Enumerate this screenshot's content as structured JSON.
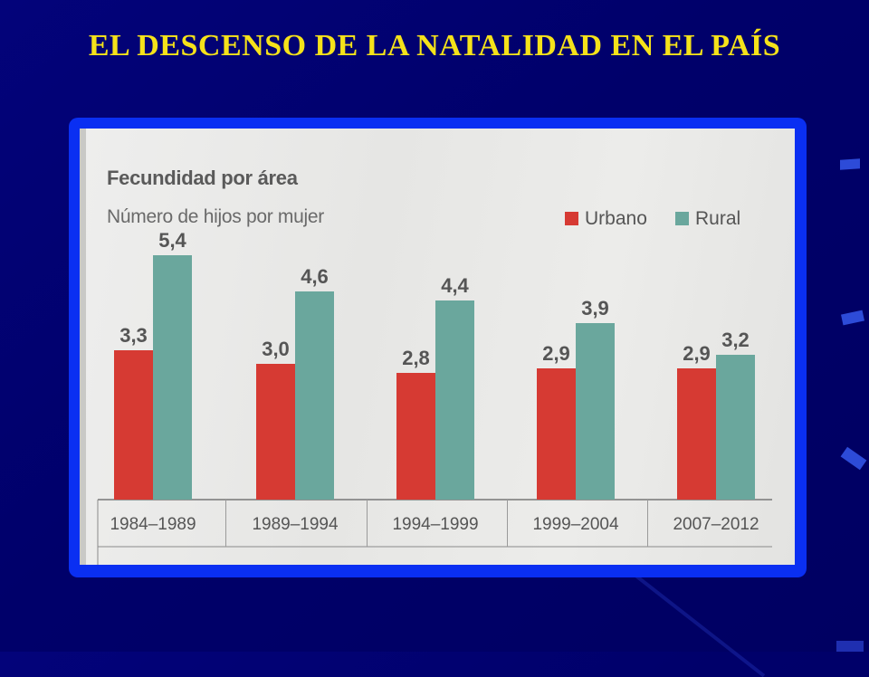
{
  "slide": {
    "title": "EL DESCENSO DE LA NATALIDAD EN EL PAÍS"
  },
  "colors": {
    "background": "#01016e",
    "title": "#f5e21a",
    "frame": "#0a2ff2",
    "urbano": "#d63a33",
    "rural": "#6aa79d"
  },
  "chart_data": {
    "type": "bar",
    "title": "Fecundidad por área",
    "subtitle": "Número de hijos por mujer",
    "categories": [
      "1984–1989",
      "1989–1994",
      "1994–1999",
      "1999–2004",
      "2007–2012"
    ],
    "series": [
      {
        "name": "Urbano",
        "values": [
          3.3,
          3.0,
          2.8,
          2.9,
          2.9
        ],
        "labels": [
          "3,3",
          "3,0",
          "2,8",
          "2,9",
          "2,9"
        ]
      },
      {
        "name": "Rural",
        "values": [
          5.4,
          4.6,
          4.4,
          3.9,
          3.2
        ],
        "labels": [
          "5,4",
          "4,6",
          "4,4",
          "3,9",
          "3,2"
        ]
      }
    ],
    "ylim": [
      0,
      6
    ],
    "legend_position": "top-right",
    "grid": false
  }
}
